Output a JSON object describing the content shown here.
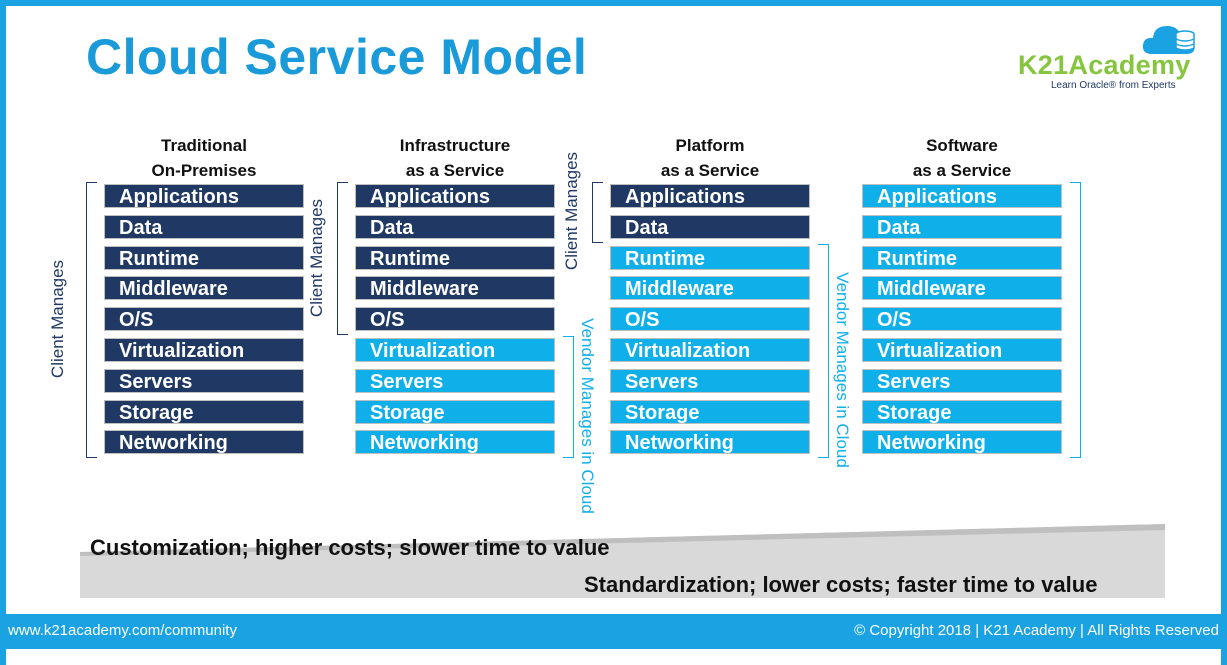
{
  "title": "Cloud Service Model",
  "logo": {
    "name": "K21Academy",
    "tagline": "Learn Oracle® from Experts",
    "cloud_icon": "cloud-database-icon"
  },
  "columns": [
    {
      "heading": [
        "Traditional",
        "On-Premises"
      ],
      "items": [
        "Applications",
        "Data",
        "Runtime",
        "Middleware",
        "O/S",
        "Virtualization",
        "Servers",
        "Storage",
        "Networking"
      ],
      "client_managed_count": 9
    },
    {
      "heading": [
        "Infrastructure",
        "as a Service"
      ],
      "items": [
        "Applications",
        "Data",
        "Runtime",
        "Middleware",
        "O/S",
        "Virtualization",
        "Servers",
        "Storage",
        "Networking"
      ],
      "client_managed_count": 5
    },
    {
      "heading": [
        "Platform",
        "as a Service"
      ],
      "items": [
        "Applications",
        "Data",
        "Runtime",
        "Middleware",
        "O/S",
        "Virtualization",
        "Servers",
        "Storage",
        "Networking"
      ],
      "client_managed_count": 2
    },
    {
      "heading": [
        "Software",
        "as a Service"
      ],
      "items": [
        "Applications",
        "Data",
        "Runtime",
        "Middleware",
        "O/S",
        "Virtualization",
        "Servers",
        "Storage",
        "Networking"
      ],
      "client_managed_count": 0
    }
  ],
  "labels": {
    "client": "Client Manages",
    "vendor": "Vendor Manages in Cloud"
  },
  "scale": {
    "top": "Customization; higher costs; slower time to value",
    "bottom": "Standardization; lower costs; faster time to value"
  },
  "footer": {
    "left": "www.k21academy.com/community",
    "right": "© Copyright 2018 | K21 Academy | All Rights Reserved"
  },
  "colors": {
    "client": "#1f3864",
    "vendor": "#0fb0ea",
    "accent": "#1aa2e3",
    "logo_green": "#86c540"
  }
}
